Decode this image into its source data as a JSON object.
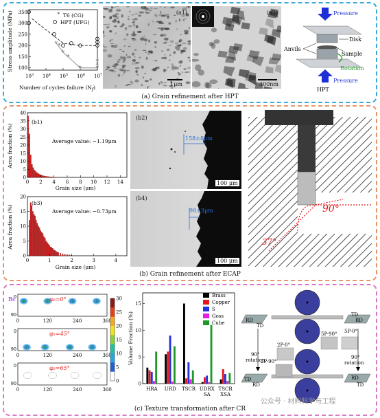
{
  "panel_a": {
    "caption": "(a) Grain refinement after HPT",
    "chart": {
      "ylabel": "Stress amplitude (MPa)",
      "xlabel": "Number of cycles failure (N",
      "xlabel_sub": "f",
      "xlabel_end": ")",
      "yticks": [
        "350",
        "300",
        "250",
        "200",
        "150",
        "100"
      ],
      "xticks": [
        "10",
        "10",
        "10",
        "10",
        "10"
      ],
      "xexps": [
        "3",
        "4",
        "5",
        "6",
        "7"
      ],
      "legend_t6": "T6 (CG)",
      "legend_hpt": "HPT (UFG)"
    },
    "a1_label": "(a1)",
    "a1_scale": "1μm",
    "a2_label": "(a2)",
    "a2_scale": "300nm",
    "diagram": {
      "pressure_top": "Pressure",
      "disk": "Disk",
      "anvils": "Anvils",
      "sample": "Sample",
      "rotation": "Rotation",
      "pressure_bottom": "Pressure",
      "hpt": "HPT"
    }
  },
  "panel_b": {
    "caption": "(b) Grain refinement after ECAP",
    "b1": {
      "label": "(b1)",
      "avg": "Average value: ~1.19μm",
      "ylabel": "Area fraction (%)",
      "xlabel": "Grain size (μm)",
      "yticks": [
        "40",
        "35",
        "30",
        "25",
        "20",
        "15",
        "10",
        "5",
        "0"
      ],
      "xticks": [
        "0",
        "2",
        "4",
        "6",
        "8",
        "10",
        "12",
        "14"
      ]
    },
    "b3": {
      "label": "(b3)",
      "avg": "Average value: ~0.73μm",
      "ylabel": "Area fraction (%)",
      "xlabel": "Grain size (μm)",
      "yticks": [
        "20",
        "15",
        "10",
        "5",
        "0"
      ],
      "xticks": [
        "0",
        "1",
        "2",
        "3",
        "4"
      ]
    },
    "b2": {
      "label": "(b2)",
      "measure": "158±8μm",
      "scale": "100 μm"
    },
    "b4": {
      "label": "(b4)",
      "measure": "98±3μm",
      "scale": "100 μm"
    },
    "die": {
      "angle1": "90°",
      "angle2": "37°"
    }
  },
  "panel_c": {
    "caption": "(c) Texture transformation after CR",
    "odf": {
      "bs": "Bs",
      "phi_labels": [
        "φ₂=0°",
        "φ₂=45°",
        "φ₂=65°"
      ],
      "xticks": [
        "0",
        "120",
        "240",
        "360"
      ],
      "yticks": [
        "0",
        "90"
      ],
      "colorbar_ticks": [
        "30",
        "25",
        "20",
        "15",
        "10",
        "5",
        "0"
      ]
    },
    "vol_chart": {
      "ylabel": "Volume Fraction (%)",
      "yticks": [
        "15",
        "10",
        "5",
        "0"
      ],
      "categories": [
        "HRA",
        "URD",
        "TSCR",
        "UDRX SA",
        "TSCR XSA"
      ],
      "cat_lines": [
        [
          "HRA"
        ],
        [
          "URD"
        ],
        [
          "TSCR"
        ],
        [
          "UDRX",
          "SA"
        ],
        [
          "TSCR",
          "XSA"
        ]
      ],
      "legend": [
        "Brass",
        "Copper",
        "S",
        "Goss",
        "Cube"
      ],
      "colors": [
        "#000000",
        "#e8151b",
        "#2233dd",
        "#e020e0",
        "#1f9a2a"
      ]
    },
    "rolling": {
      "rd": "RD",
      "td": "TD",
      "p1": "2P-0°",
      "p2": "2P-90°",
      "p3": "5P-90°",
      "p4": "5P-0°",
      "rot_l": "90°",
      "rot_l2": "rotation",
      "rot_r": "90°",
      "rot_r2": "rotation"
    },
    "watermark": "公众号 · 材料科学与工程"
  },
  "chart_data": [
    {
      "type": "scatter",
      "title": "",
      "xlabel": "Number of cycles failure (Nf)",
      "ylabel": "Stress amplitude (MPa)",
      "xscale": "log",
      "xlim": [
        1000,
        10000000
      ],
      "ylim": [
        90,
        360
      ],
      "series": [
        {
          "name": "T6 (CG)",
          "x": [
            40000,
            60000,
            100000,
            200000,
            1000000,
            10000000,
            10000000,
            10000000
          ],
          "y": [
            210,
            200,
            170,
            150,
            100,
            100,
            115,
            130
          ]
        },
        {
          "name": "HPT (UFG)",
          "x": [
            1000,
            1000,
            30000,
            100000,
            300000,
            1000000,
            10000000,
            10000000,
            10000000
          ],
          "y": [
            350,
            300,
            250,
            200,
            210,
            200,
            200,
            215,
            230
          ]
        }
      ]
    },
    {
      "type": "bar",
      "title": "",
      "xlabel": "Grain size (μm)",
      "ylabel": "Area fraction (%)",
      "ylim": [
        0,
        40
      ],
      "xlim": [
        0,
        15
      ],
      "bin_width": 0.2,
      "x": [
        0.1,
        0.3,
        0.5,
        0.7,
        0.9,
        1.1,
        1.3,
        1.5,
        1.7,
        1.9,
        2.1,
        2.3,
        2.5,
        2.7,
        2.9,
        3.1,
        3.3,
        3.5,
        3.7,
        3.9,
        4.1,
        4.3
      ],
      "values": [
        38,
        27,
        14,
        8,
        6,
        4.5,
        3.5,
        2.8,
        2.2,
        1.8,
        1.4,
        1.1,
        0.9,
        0.7,
        0.6,
        0.5,
        0.4,
        0.3,
        0.3,
        0.2,
        0.2,
        0.1
      ]
    },
    {
      "type": "bar",
      "title": "",
      "xlabel": "Grain size (μm)",
      "ylabel": "Area fraction (%)",
      "ylim": [
        0,
        20
      ],
      "xlim": [
        0,
        4.5
      ],
      "bin_width": 0.05,
      "x": [
        0.1,
        0.15,
        0.2,
        0.25,
        0.3,
        0.35,
        0.4,
        0.45,
        0.5,
        0.55,
        0.6,
        0.65,
        0.7,
        0.75,
        0.8,
        0.85,
        0.9,
        0.95,
        1.0,
        1.05,
        1.1,
        1.15,
        1.2,
        1.25,
        1.3,
        1.35,
        1.4,
        1.5,
        1.6,
        1.7,
        1.8,
        1.9,
        2.0
      ],
      "values": [
        12,
        18,
        17,
        15,
        14,
        13.5,
        12,
        11,
        10,
        9.5,
        8.5,
        8,
        7.5,
        6.5,
        6,
        5,
        4.5,
        4,
        3.5,
        3,
        2.8,
        2.5,
        2,
        1.8,
        1.5,
        1.3,
        1.1,
        0.9,
        0.7,
        0.5,
        0.4,
        0.3,
        0.2
      ]
    },
    {
      "type": "bar",
      "title": "",
      "xlabel": "",
      "ylabel": "Volume Fraction (%)",
      "ylim": [
        0,
        17
      ],
      "categories": [
        "HRA",
        "URD",
        "TSCR",
        "UDRX SA",
        "TSCR XSA"
      ],
      "series": [
        {
          "name": "Brass",
          "values": [
            3,
            5.5,
            15,
            0.3,
            0.8
          ]
        },
        {
          "name": "Copper",
          "values": [
            2.5,
            6,
            1,
            1.2,
            2.7
          ]
        },
        {
          "name": "S",
          "values": [
            2.2,
            9,
            4,
            1.5,
            1.8
          ]
        },
        {
          "name": "Goss",
          "values": [
            0.5,
            0.4,
            0.8,
            0.3,
            0.5
          ]
        },
        {
          "name": "Cube",
          "values": [
            6,
            7,
            2.5,
            11,
            2
          ]
        }
      ]
    }
  ]
}
